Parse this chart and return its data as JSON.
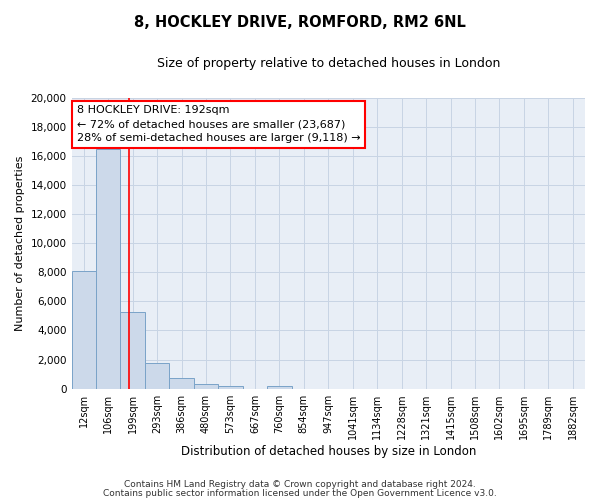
{
  "title": "8, HOCKLEY DRIVE, ROMFORD, RM2 6NL",
  "subtitle": "Size of property relative to detached houses in London",
  "xlabel": "Distribution of detached houses by size in London",
  "ylabel": "Number of detached properties",
  "bar_labels": [
    "12sqm",
    "106sqm",
    "199sqm",
    "293sqm",
    "386sqm",
    "480sqm",
    "573sqm",
    "667sqm",
    "760sqm",
    "854sqm",
    "947sqm",
    "1041sqm",
    "1134sqm",
    "1228sqm",
    "1321sqm",
    "1415sqm",
    "1508sqm",
    "1602sqm",
    "1695sqm",
    "1789sqm",
    "1882sqm"
  ],
  "bar_values": [
    8100,
    16500,
    5300,
    1750,
    700,
    300,
    150,
    0,
    150,
    0,
    0,
    0,
    0,
    0,
    0,
    0,
    0,
    0,
    0,
    0,
    0
  ],
  "bar_color": "#ccd9ea",
  "bar_edge_color": "#7aa3c8",
  "property_line_x": 1.87,
  "property_line_color": "red",
  "annotation_title": "8 HOCKLEY DRIVE: 192sqm",
  "annotation_line1": "← 72% of detached houses are smaller (23,687)",
  "annotation_line2": "28% of semi-detached houses are larger (9,118) →",
  "annotation_box_color": "white",
  "annotation_box_edge_color": "red",
  "ylim": [
    0,
    20000
  ],
  "yticks": [
    0,
    2000,
    4000,
    6000,
    8000,
    10000,
    12000,
    14000,
    16000,
    18000,
    20000
  ],
  "grid_color": "#c8d4e4",
  "footer1": "Contains HM Land Registry data © Crown copyright and database right 2024.",
  "footer2": "Contains public sector information licensed under the Open Government Licence v3.0.",
  "bg_color": "#e8eef6",
  "fig_bg_color": "#ffffff"
}
